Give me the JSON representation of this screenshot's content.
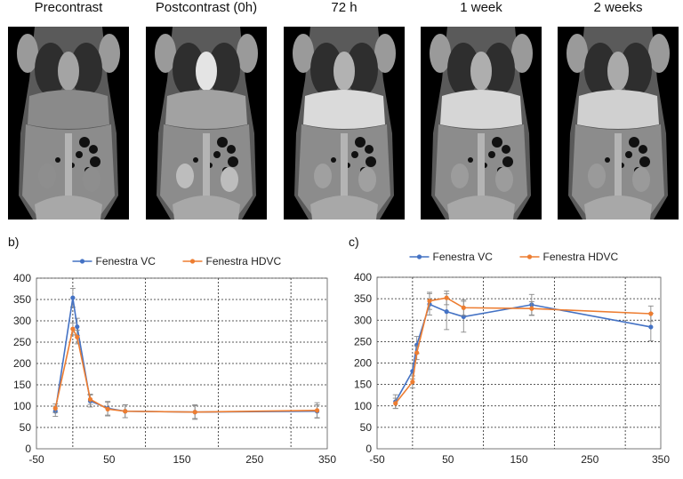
{
  "panels": [
    {
      "label": "Precontrast",
      "liver": "#8a8a8a",
      "kidney": "#8e8e8e",
      "vessel": "#a4a4a4"
    },
    {
      "label": "Postcontrast (0h)",
      "liver": "#a2a2a2",
      "kidney": "#bdbdbd",
      "vessel": "#e4e4e4"
    },
    {
      "label": "72 h",
      "liver": "#dadada",
      "kidney": "#a0a0a0",
      "vessel": "#b2b2b2"
    },
    {
      "label": "1 week",
      "liver": "#d6d6d6",
      "kidney": "#9c9c9c",
      "vessel": "#aeaeae"
    },
    {
      "label": "2 weeks",
      "liver": "#d0d0d0",
      "kidney": "#9a9a9a",
      "vessel": "#aaaaaa"
    }
  ],
  "chart_data": [
    {
      "type": "line",
      "panel_label": "b)",
      "xlim": [
        -50,
        350
      ],
      "ylim": [
        0,
        400
      ],
      "x_ticks": [
        -50,
        50,
        150,
        250,
        350
      ],
      "x_tick_labels": [
        "-50",
        "50",
        "150",
        "250",
        "350"
      ],
      "y_ticks": [
        0,
        50,
        100,
        150,
        200,
        250,
        300,
        350,
        400
      ],
      "y_tick_labels": [
        "0",
        "50",
        "100",
        "150",
        "200",
        "250",
        "300",
        "350",
        "400"
      ],
      "vertical_grid": [
        0,
        100,
        200,
        300
      ],
      "legend_position": "top",
      "series": [
        {
          "name": "Fenestra VC",
          "color": "#4472c4",
          "points": [
            [
              -24,
              88
            ],
            [
              0,
              354
            ],
            [
              6,
              286
            ],
            [
              24,
              112
            ],
            [
              48,
              95
            ],
            [
              72,
              88
            ],
            [
              168,
              86
            ],
            [
              336,
              88
            ]
          ],
          "errors": [
            12,
            22,
            20,
            14,
            16,
            15,
            15,
            15
          ]
        },
        {
          "name": "Fenestra HDVC",
          "color": "#ed7d31",
          "points": [
            [
              -24,
              95
            ],
            [
              0,
              281
            ],
            [
              6,
              262
            ],
            [
              24,
              116
            ],
            [
              48,
              93
            ],
            [
              72,
              88
            ],
            [
              168,
              86
            ],
            [
              336,
              90
            ]
          ],
          "errors": [
            10,
            14,
            16,
            12,
            16,
            15,
            17,
            18
          ]
        }
      ]
    },
    {
      "type": "line",
      "panel_label": "c)",
      "xlim": [
        -50,
        350
      ],
      "ylim": [
        0,
        400
      ],
      "x_ticks": [
        -50,
        50,
        150,
        250,
        350
      ],
      "x_tick_labels": [
        "-50",
        "50",
        "150",
        "250",
        "350"
      ],
      "y_ticks": [
        0,
        50,
        100,
        150,
        200,
        250,
        300,
        350,
        400
      ],
      "y_tick_labels": [
        "0",
        "50",
        "100",
        "150",
        "200",
        "250",
        "300",
        "350",
        "400"
      ],
      "vertical_grid": [
        0,
        100,
        200,
        300
      ],
      "legend_position": "top",
      "series": [
        {
          "name": "Fenestra VC",
          "color": "#4472c4",
          "points": [
            [
              -24,
              110
            ],
            [
              0,
              181
            ],
            [
              6,
              242
            ],
            [
              24,
              337
            ],
            [
              48,
              320
            ],
            [
              72,
              308
            ],
            [
              168,
              336
            ],
            [
              336,
              284
            ]
          ],
          "errors": [
            16,
            18,
            20,
            25,
            42,
            36,
            24,
            32
          ]
        },
        {
          "name": "Fenestra HDVC",
          "color": "#ed7d31",
          "points": [
            [
              -24,
              106
            ],
            [
              0,
              156
            ],
            [
              6,
              224
            ],
            [
              24,
              345
            ],
            [
              48,
              352
            ],
            [
              72,
              329
            ],
            [
              168,
              327
            ],
            [
              336,
              315
            ]
          ],
          "errors": [
            12,
            14,
            16,
            20,
            16,
            18,
            16,
            18
          ]
        }
      ]
    }
  ]
}
